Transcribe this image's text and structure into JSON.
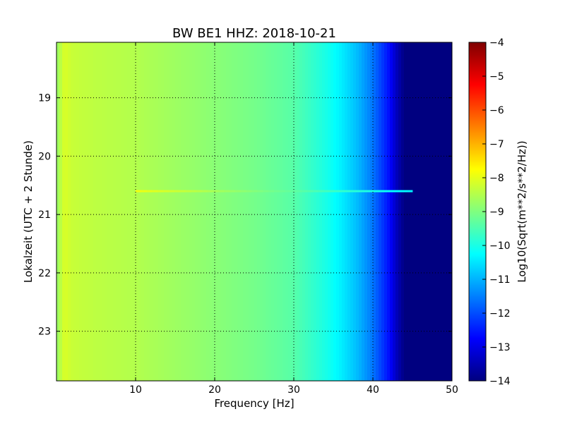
{
  "chart_data": {
    "type": "heatmap",
    "title": "BW BE1 HHZ: 2018-10-21",
    "xlabel": "Frequency [Hz]",
    "ylabel": "Lokalzeit (UTC + 2 Stunde)",
    "xlim": [
      0,
      50
    ],
    "ylim": [
      23.85,
      18.05
    ],
    "xticks": [
      10,
      20,
      30,
      40,
      50
    ],
    "yticks": [
      19,
      20,
      21,
      22,
      23
    ],
    "grid": true,
    "colormap": "jet",
    "colorbar": {
      "label": "Log10(Sqrt(m**2/s**2/Hz))",
      "range": [
        -14,
        -4
      ],
      "ticks": [
        -4,
        -5,
        -6,
        -7,
        -8,
        -9,
        -10,
        -11,
        -12,
        -13,
        -14
      ]
    },
    "frequency_profile": {
      "frequency_hz": [
        0,
        1,
        2,
        5,
        10,
        15,
        20,
        25,
        30,
        32,
        34,
        36,
        38,
        40,
        42,
        43,
        44,
        50
      ],
      "log_amplitude": [
        -8.8,
        -8.1,
        -8.3,
        -8.4,
        -8.5,
        -8.7,
        -8.9,
        -9.1,
        -9.4,
        -9.7,
        -10.0,
        -10.4,
        -10.9,
        -11.6,
        -12.6,
        -13.4,
        -14.0,
        -14.0
      ]
    },
    "annotations": [
      {
        "time": 20.6,
        "frequency_range_hz": [
          10,
          45
        ],
        "log_amplitude": -7.9,
        "description": "broadband horizontal band"
      }
    ]
  }
}
